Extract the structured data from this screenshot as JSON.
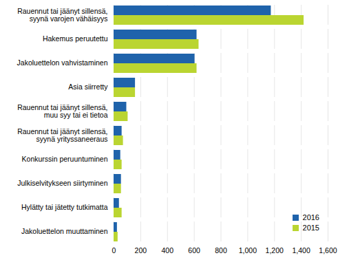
{
  "chart_data": {
    "type": "bar",
    "orientation": "horizontal",
    "categories": [
      "Rauennut tai jäänyt sillensä,\nsyynä varojen vähäisyys",
      "Hakemus peruutettu",
      "Jakoluettelon vahvistaminen",
      "Asia siirretty",
      "Rauennut tai jäänyt sillensä,\nmuu syy tai ei tietoa",
      "Rauennut tai jäänyt sillensä,\nsyynä yrityssaneeraus",
      "Konkurssin peruuntuminen",
      "Julkiselvitykseen siirtyminen",
      "Hylätty tai jätetty tutkimatta",
      "Jakoluettelon muuttaminen"
    ],
    "series": [
      {
        "name": "2016",
        "color": "#1f63ab",
        "values": [
          1175,
          620,
          605,
          160,
          95,
          60,
          50,
          55,
          40,
          25
        ]
      },
      {
        "name": "2015",
        "color": "#bad531",
        "values": [
          1420,
          635,
          620,
          160,
          105,
          70,
          60,
          55,
          60,
          30
        ]
      }
    ],
    "xlim": [
      0,
      1600
    ],
    "xticks": [
      0,
      200,
      400,
      600,
      800,
      1000,
      1200,
      1400,
      1600
    ],
    "grid": true,
    "legend": "bottom-right"
  }
}
